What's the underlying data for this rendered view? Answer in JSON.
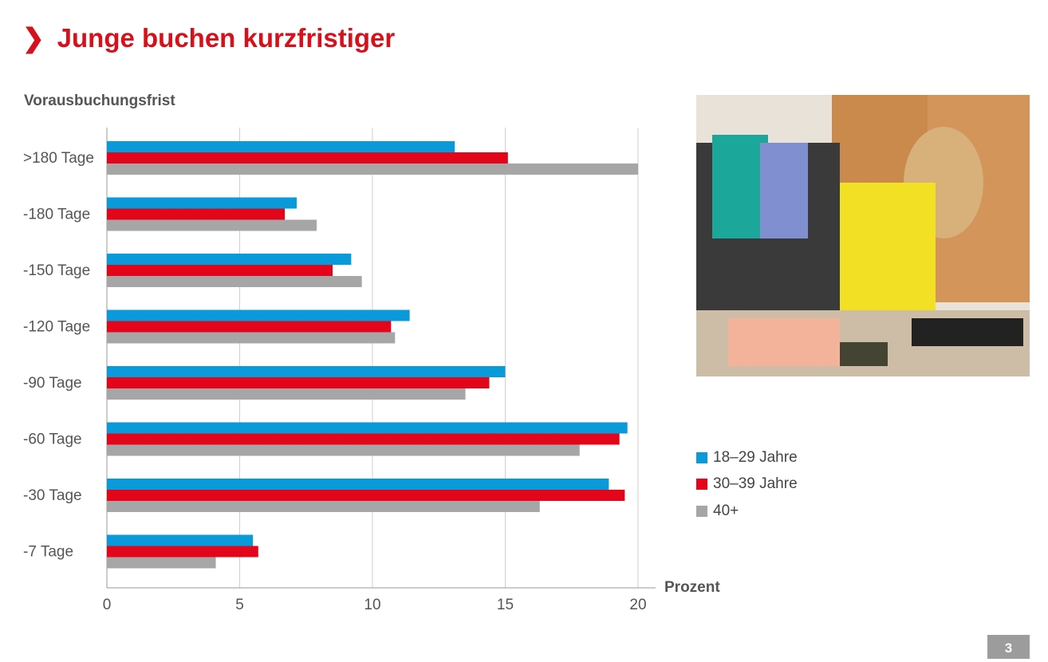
{
  "title": "Junge buchen kurzfristiger",
  "title_icon": "chevron-right-icon",
  "page_number": "3",
  "photo": {
    "description_icon": "photo-woman-booking-icon"
  },
  "chart_data": {
    "type": "bar",
    "orientation": "horizontal",
    "title": "",
    "ylabel": "Vorausbuchungsfrist",
    "xlabel": "Prozent",
    "xlim": [
      0,
      20
    ],
    "xticks": [
      0,
      5,
      10,
      15,
      20
    ],
    "grid": true,
    "legend_position": "right",
    "categories": [
      ">180 Tage",
      "-180 Tage",
      "-150 Tage",
      "-120 Tage",
      "-90 Tage",
      "-60 Tage",
      "-30 Tage",
      "-7 Tage"
    ],
    "series": [
      {
        "name": "18–29 Jahre",
        "color": "#0a9ad9",
        "values": [
          13.1,
          7.15,
          9.2,
          11.4,
          15.0,
          19.6,
          18.9,
          5.5
        ]
      },
      {
        "name": "30–39 Jahre",
        "color": "#e3061a",
        "values": [
          15.1,
          6.7,
          8.5,
          10.7,
          14.4,
          19.3,
          19.5,
          5.7
        ]
      },
      {
        "name": "40+",
        "color": "#a6a6a6",
        "values": [
          20.0,
          7.9,
          9.6,
          10.85,
          13.5,
          17.8,
          16.3,
          4.1
        ]
      }
    ]
  }
}
